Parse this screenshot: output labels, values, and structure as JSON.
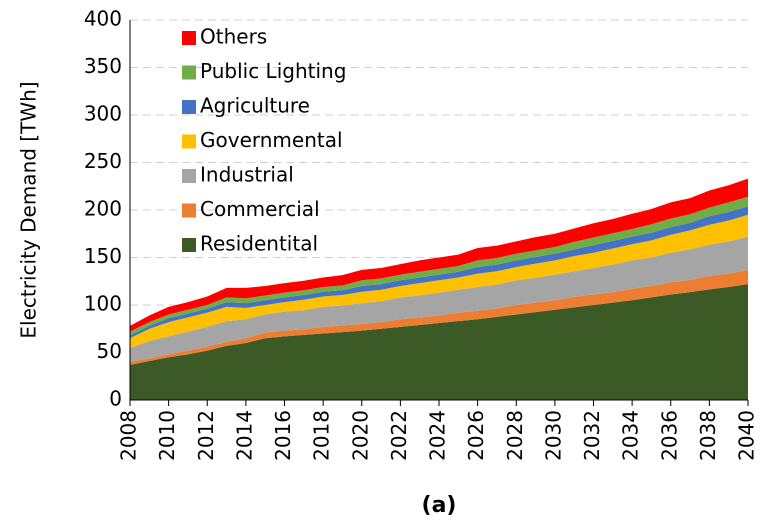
{
  "chart_data": {
    "type": "stacked_area",
    "ylabel": "Electricity Demand [TWh]",
    "caption": "(a)",
    "x": [
      2008,
      2009,
      2010,
      2011,
      2012,
      2013,
      2014,
      2015,
      2016,
      2017,
      2018,
      2019,
      2020,
      2021,
      2022,
      2023,
      2024,
      2025,
      2026,
      2027,
      2028,
      2029,
      2030,
      2031,
      2032,
      2033,
      2034,
      2035,
      2036,
      2037,
      2038,
      2039,
      2040
    ],
    "xlim": [
      2008,
      2040
    ],
    "xticks": [
      2008,
      2010,
      2012,
      2014,
      2016,
      2018,
      2020,
      2022,
      2024,
      2026,
      2028,
      2030,
      2032,
      2034,
      2036,
      2038,
      2040
    ],
    "ylim": [
      0,
      400
    ],
    "yticks": [
      0,
      50,
      100,
      150,
      200,
      250,
      300,
      350,
      400
    ],
    "grid": true,
    "series": [
      {
        "name": "Residentital",
        "color": "#3b5a26",
        "values": [
          37,
          41,
          45,
          48,
          52,
          57,
          60,
          65,
          67,
          68.5,
          70,
          71.5,
          73,
          75,
          77,
          79,
          81,
          83,
          85,
          87.5,
          90,
          92.5,
          95,
          97.5,
          100,
          102.5,
          105,
          108,
          111,
          113.5,
          116.5,
          119,
          122
        ]
      },
      {
        "name": "Commercial",
        "color": "#ed7d31",
        "values": [
          3,
          3,
          3,
          4,
          4,
          4,
          5,
          6,
          6,
          6,
          7,
          7,
          7,
          7,
          8,
          8,
          8,
          9,
          9,
          9,
          10,
          10,
          10,
          11,
          11,
          11,
          12,
          12,
          13,
          13,
          14,
          14,
          15
        ]
      },
      {
        "name": "Industrial",
        "color": "#a5a5a5",
        "values": [
          15,
          18,
          19,
          20,
          21,
          22,
          20,
          19,
          20,
          20,
          21,
          21,
          22,
          22,
          23,
          23,
          24,
          24,
          25,
          25,
          26,
          26,
          27,
          27,
          28,
          29,
          30,
          30,
          31,
          32,
          33,
          34,
          35
        ]
      },
      {
        "name": "Governmental",
        "color": "#ffc000",
        "values": [
          10,
          13,
          15,
          15,
          15,
          15,
          12,
          10,
          10,
          11,
          11,
          11,
          12,
          12,
          12,
          13,
          13,
          13,
          14,
          14,
          14,
          15,
          15,
          16,
          16,
          17,
          17,
          18,
          19,
          20,
          21,
          22,
          23
        ]
      },
      {
        "name": "Agriculture",
        "color": "#4472c4",
        "values": [
          3,
          3,
          4,
          4,
          4,
          5,
          5,
          5,
          5,
          5,
          5,
          5,
          6,
          6,
          6,
          6,
          6,
          6,
          7,
          7,
          7,
          7,
          7,
          7,
          8,
          8,
          8,
          8,
          8,
          8,
          9,
          9,
          9
        ]
      },
      {
        "name": "Public Lighting",
        "color": "#70ad47",
        "values": [
          4,
          4,
          4,
          4,
          4,
          5,
          5,
          5,
          5,
          5,
          5,
          5,
          6,
          6,
          6,
          6,
          6,
          6,
          7,
          7,
          7,
          7,
          7,
          8,
          8,
          8,
          8,
          9,
          9,
          9,
          9,
          10,
          10
        ]
      },
      {
        "name": "Others",
        "color": "#ff0000",
        "values": [
          6,
          7,
          8,
          8,
          9,
          10,
          11,
          10,
          10,
          10,
          10,
          11,
          11,
          11,
          11,
          12,
          12,
          12,
          13,
          13,
          13,
          14,
          14,
          14,
          15,
          15,
          16,
          16,
          17,
          17,
          18,
          18,
          19
        ]
      }
    ]
  }
}
